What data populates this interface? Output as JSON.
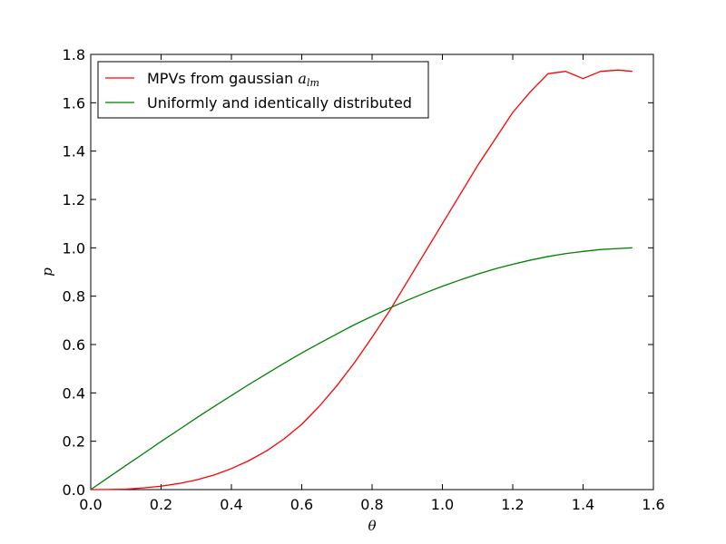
{
  "chart_data": {
    "type": "line",
    "title": "",
    "xlabel": "θ",
    "ylabel": "p",
    "xlim": [
      0.0,
      1.6
    ],
    "ylim": [
      0.0,
      1.8
    ],
    "xticks": [
      "0.0",
      "0.2",
      "0.4",
      "0.6",
      "0.8",
      "1.0",
      "1.2",
      "1.4",
      "1.6"
    ],
    "yticks": [
      "0.0",
      "0.2",
      "0.4",
      "0.6",
      "0.8",
      "1.0",
      "1.2",
      "1.4",
      "1.6",
      "1.8"
    ],
    "grid": false,
    "legend_position": "top-left",
    "series": [
      {
        "name": "MPVs from gaussian a_lm",
        "label_main": "MPVs from gaussian ",
        "label_sym": "a",
        "label_sub": "lm",
        "color": "#ff0000",
        "x": [
          0.0,
          0.05,
          0.1,
          0.15,
          0.2,
          0.25,
          0.3,
          0.35,
          0.4,
          0.45,
          0.5,
          0.55,
          0.6,
          0.65,
          0.7,
          0.75,
          0.8,
          0.85,
          0.9,
          0.95,
          1.0,
          1.05,
          1.1,
          1.15,
          1.2,
          1.25,
          1.3,
          1.35,
          1.4,
          1.45,
          1.5,
          1.54
        ],
        "y": [
          0.0,
          0.0004,
          0.002,
          0.007,
          0.014,
          0.025,
          0.04,
          0.06,
          0.087,
          0.12,
          0.16,
          0.21,
          0.27,
          0.345,
          0.43,
          0.525,
          0.63,
          0.74,
          0.86,
          0.98,
          1.1,
          1.22,
          1.34,
          1.45,
          1.56,
          1.645,
          1.72,
          1.73,
          1.7,
          1.73,
          1.735,
          1.73
        ]
      },
      {
        "name": "Uniformly and identically distributed",
        "label_main": "Uniformly and identically distributed",
        "color": "#008000",
        "x": [
          0.0,
          0.05,
          0.1,
          0.15,
          0.2,
          0.25,
          0.3,
          0.35,
          0.4,
          0.45,
          0.5,
          0.55,
          0.6,
          0.65,
          0.7,
          0.75,
          0.8,
          0.85,
          0.9,
          0.95,
          1.0,
          1.05,
          1.1,
          1.15,
          1.2,
          1.25,
          1.3,
          1.35,
          1.4,
          1.45,
          1.5,
          1.54
        ],
        "y": [
          0.0,
          0.05,
          0.1,
          0.149,
          0.199,
          0.247,
          0.296,
          0.343,
          0.389,
          0.435,
          0.479,
          0.523,
          0.565,
          0.605,
          0.644,
          0.682,
          0.717,
          0.751,
          0.783,
          0.813,
          0.841,
          0.867,
          0.891,
          0.913,
          0.932,
          0.949,
          0.964,
          0.976,
          0.985,
          0.993,
          0.997,
          1.0
        ]
      }
    ]
  }
}
